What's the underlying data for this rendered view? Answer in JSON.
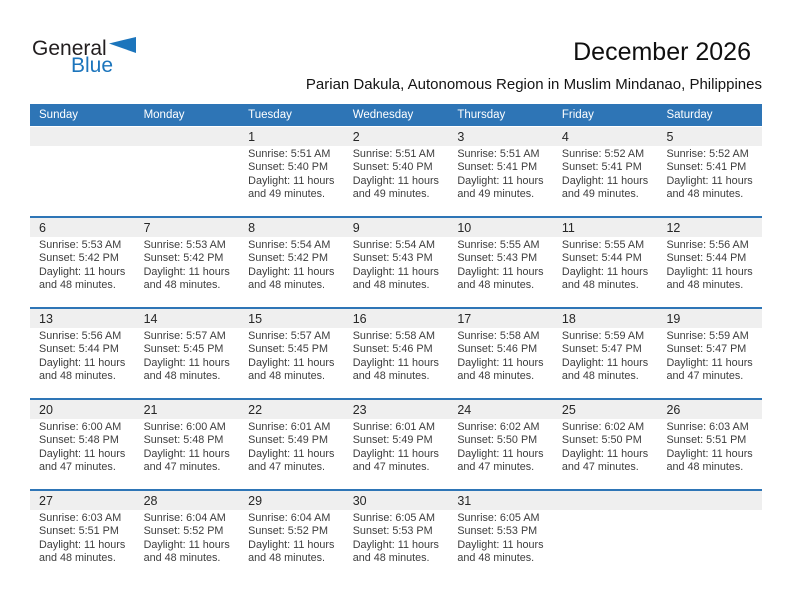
{
  "logo": {
    "line1": "General",
    "line2": "Blue"
  },
  "header": {
    "title": "December 2026",
    "subtitle": "Parian Dakula, Autonomous Region in Muslim Mindanao, Philippines"
  },
  "weekdays": [
    "Sunday",
    "Monday",
    "Tuesday",
    "Wednesday",
    "Thursday",
    "Friday",
    "Saturday"
  ],
  "colors": {
    "header_blue": "#2e75b6",
    "row_divider_blue": "#2e75b6",
    "number_band_gray": "#efefef",
    "logo_blue": "#1c75bc"
  },
  "weeks": [
    {
      "days": [
        null,
        null,
        {
          "day": "1",
          "sunrise": "Sunrise: 5:51 AM",
          "sunset": "Sunset: 5:40 PM",
          "daylight1": "Daylight: 11 hours",
          "daylight2": "and 49 minutes."
        },
        {
          "day": "2",
          "sunrise": "Sunrise: 5:51 AM",
          "sunset": "Sunset: 5:40 PM",
          "daylight1": "Daylight: 11 hours",
          "daylight2": "and 49 minutes."
        },
        {
          "day": "3",
          "sunrise": "Sunrise: 5:51 AM",
          "sunset": "Sunset: 5:41 PM",
          "daylight1": "Daylight: 11 hours",
          "daylight2": "and 49 minutes."
        },
        {
          "day": "4",
          "sunrise": "Sunrise: 5:52 AM",
          "sunset": "Sunset: 5:41 PM",
          "daylight1": "Daylight: 11 hours",
          "daylight2": "and 49 minutes."
        },
        {
          "day": "5",
          "sunrise": "Sunrise: 5:52 AM",
          "sunset": "Sunset: 5:41 PM",
          "daylight1": "Daylight: 11 hours",
          "daylight2": "and 48 minutes."
        }
      ]
    },
    {
      "days": [
        {
          "day": "6",
          "sunrise": "Sunrise: 5:53 AM",
          "sunset": "Sunset: 5:42 PM",
          "daylight1": "Daylight: 11 hours",
          "daylight2": "and 48 minutes."
        },
        {
          "day": "7",
          "sunrise": "Sunrise: 5:53 AM",
          "sunset": "Sunset: 5:42 PM",
          "daylight1": "Daylight: 11 hours",
          "daylight2": "and 48 minutes."
        },
        {
          "day": "8",
          "sunrise": "Sunrise: 5:54 AM",
          "sunset": "Sunset: 5:42 PM",
          "daylight1": "Daylight: 11 hours",
          "daylight2": "and 48 minutes."
        },
        {
          "day": "9",
          "sunrise": "Sunrise: 5:54 AM",
          "sunset": "Sunset: 5:43 PM",
          "daylight1": "Daylight: 11 hours",
          "daylight2": "and 48 minutes."
        },
        {
          "day": "10",
          "sunrise": "Sunrise: 5:55 AM",
          "sunset": "Sunset: 5:43 PM",
          "daylight1": "Daylight: 11 hours",
          "daylight2": "and 48 minutes."
        },
        {
          "day": "11",
          "sunrise": "Sunrise: 5:55 AM",
          "sunset": "Sunset: 5:44 PM",
          "daylight1": "Daylight: 11 hours",
          "daylight2": "and 48 minutes."
        },
        {
          "day": "12",
          "sunrise": "Sunrise: 5:56 AM",
          "sunset": "Sunset: 5:44 PM",
          "daylight1": "Daylight: 11 hours",
          "daylight2": "and 48 minutes."
        }
      ]
    },
    {
      "days": [
        {
          "day": "13",
          "sunrise": "Sunrise: 5:56 AM",
          "sunset": "Sunset: 5:44 PM",
          "daylight1": "Daylight: 11 hours",
          "daylight2": "and 48 minutes."
        },
        {
          "day": "14",
          "sunrise": "Sunrise: 5:57 AM",
          "sunset": "Sunset: 5:45 PM",
          "daylight1": "Daylight: 11 hours",
          "daylight2": "and 48 minutes."
        },
        {
          "day": "15",
          "sunrise": "Sunrise: 5:57 AM",
          "sunset": "Sunset: 5:45 PM",
          "daylight1": "Daylight: 11 hours",
          "daylight2": "and 48 minutes."
        },
        {
          "day": "16",
          "sunrise": "Sunrise: 5:58 AM",
          "sunset": "Sunset: 5:46 PM",
          "daylight1": "Daylight: 11 hours",
          "daylight2": "and 48 minutes."
        },
        {
          "day": "17",
          "sunrise": "Sunrise: 5:58 AM",
          "sunset": "Sunset: 5:46 PM",
          "daylight1": "Daylight: 11 hours",
          "daylight2": "and 48 minutes."
        },
        {
          "day": "18",
          "sunrise": "Sunrise: 5:59 AM",
          "sunset": "Sunset: 5:47 PM",
          "daylight1": "Daylight: 11 hours",
          "daylight2": "and 48 minutes."
        },
        {
          "day": "19",
          "sunrise": "Sunrise: 5:59 AM",
          "sunset": "Sunset: 5:47 PM",
          "daylight1": "Daylight: 11 hours",
          "daylight2": "and 47 minutes."
        }
      ]
    },
    {
      "days": [
        {
          "day": "20",
          "sunrise": "Sunrise: 6:00 AM",
          "sunset": "Sunset: 5:48 PM",
          "daylight1": "Daylight: 11 hours",
          "daylight2": "and 47 minutes."
        },
        {
          "day": "21",
          "sunrise": "Sunrise: 6:00 AM",
          "sunset": "Sunset: 5:48 PM",
          "daylight1": "Daylight: 11 hours",
          "daylight2": "and 47 minutes."
        },
        {
          "day": "22",
          "sunrise": "Sunrise: 6:01 AM",
          "sunset": "Sunset: 5:49 PM",
          "daylight1": "Daylight: 11 hours",
          "daylight2": "and 47 minutes."
        },
        {
          "day": "23",
          "sunrise": "Sunrise: 6:01 AM",
          "sunset": "Sunset: 5:49 PM",
          "daylight1": "Daylight: 11 hours",
          "daylight2": "and 47 minutes."
        },
        {
          "day": "24",
          "sunrise": "Sunrise: 6:02 AM",
          "sunset": "Sunset: 5:50 PM",
          "daylight1": "Daylight: 11 hours",
          "daylight2": "and 47 minutes."
        },
        {
          "day": "25",
          "sunrise": "Sunrise: 6:02 AM",
          "sunset": "Sunset: 5:50 PM",
          "daylight1": "Daylight: 11 hours",
          "daylight2": "and 47 minutes."
        },
        {
          "day": "26",
          "sunrise": "Sunrise: 6:03 AM",
          "sunset": "Sunset: 5:51 PM",
          "daylight1": "Daylight: 11 hours",
          "daylight2": "and 48 minutes."
        }
      ]
    },
    {
      "days": [
        {
          "day": "27",
          "sunrise": "Sunrise: 6:03 AM",
          "sunset": "Sunset: 5:51 PM",
          "daylight1": "Daylight: 11 hours",
          "daylight2": "and 48 minutes."
        },
        {
          "day": "28",
          "sunrise": "Sunrise: 6:04 AM",
          "sunset": "Sunset: 5:52 PM",
          "daylight1": "Daylight: 11 hours",
          "daylight2": "and 48 minutes."
        },
        {
          "day": "29",
          "sunrise": "Sunrise: 6:04 AM",
          "sunset": "Sunset: 5:52 PM",
          "daylight1": "Daylight: 11 hours",
          "daylight2": "and 48 minutes."
        },
        {
          "day": "30",
          "sunrise": "Sunrise: 6:05 AM",
          "sunset": "Sunset: 5:53 PM",
          "daylight1": "Daylight: 11 hours",
          "daylight2": "and 48 minutes."
        },
        {
          "day": "31",
          "sunrise": "Sunrise: 6:05 AM",
          "sunset": "Sunset: 5:53 PM",
          "daylight1": "Daylight: 11 hours",
          "daylight2": "and 48 minutes."
        },
        null,
        null
      ]
    }
  ]
}
